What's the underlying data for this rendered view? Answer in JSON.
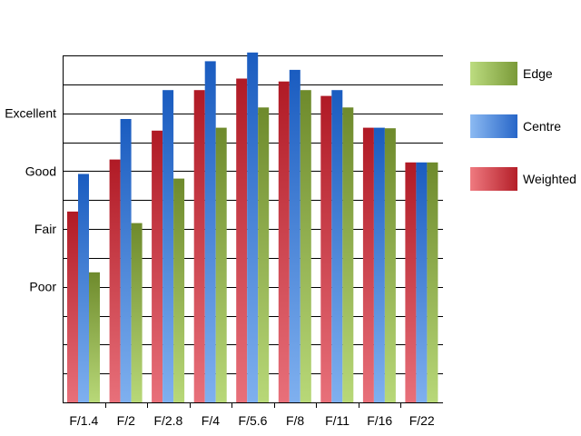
{
  "chart_data": {
    "type": "bar",
    "categories": [
      "F/1.4",
      "F/2",
      "F/2.8",
      "F/4",
      "F/5.6",
      "F/8",
      "F/11",
      "F/16",
      "F/22"
    ],
    "series": [
      {
        "name": "Weighted",
        "values": [
          2.3,
          3.2,
          3.7,
          4.4,
          4.6,
          4.55,
          4.3,
          3.75,
          3.15
        ]
      },
      {
        "name": "Centre",
        "values": [
          2.95,
          3.9,
          4.4,
          4.9,
          5.05,
          4.75,
          4.4,
          3.75,
          3.15
        ]
      },
      {
        "name": "Edge",
        "values": [
          1.25,
          2.1,
          2.87,
          3.75,
          4.1,
          4.4,
          4.1,
          3.74,
          3.15
        ]
      }
    ],
    "yticks": [
      {
        "value": 1,
        "label": "Poor"
      },
      {
        "value": 2,
        "label": "Fair"
      },
      {
        "value": 3,
        "label": "Good"
      },
      {
        "value": 4,
        "label": "Excellent"
      }
    ],
    "ylim": [
      -1,
      5
    ],
    "grid": true,
    "legend_position": "right",
    "legend_order": [
      "Edge",
      "Centre",
      "Weighted"
    ],
    "colors": {
      "Weighted": {
        "top": "#b01a25",
        "bottom": "#e8707a",
        "swatch_dark": "#b41e28",
        "swatch_light": "#ef7a80"
      },
      "Centre": {
        "top": "#1a5cc0",
        "bottom": "#7fb0ef",
        "swatch_dark": "#2766c8",
        "swatch_light": "#8cbaf2"
      },
      "Edge": {
        "top": "#6e8a2c",
        "bottom": "#b8d878",
        "swatch_dark": "#7a9a38",
        "swatch_light": "#bcdc80"
      }
    }
  }
}
